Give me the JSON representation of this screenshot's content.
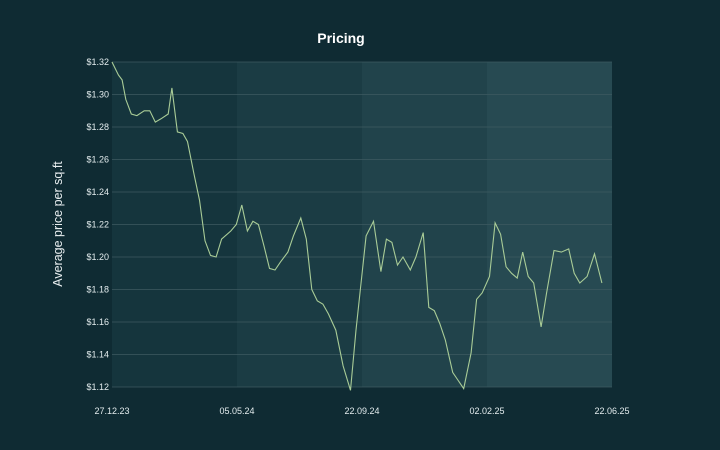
{
  "chart_data": {
    "type": "line",
    "title": "Pricing",
    "xlabel": "",
    "ylabel": "Average price per sq.ft",
    "x_tick_labels": [
      "27.12.23",
      "05.05.24",
      "22.09.24",
      "02.02.25",
      "22.06.25"
    ],
    "y_tick_labels": [
      "$1.12",
      "$1.14",
      "$1.16",
      "$1.18",
      "$1.20",
      "$1.22",
      "$1.24",
      "$1.26",
      "$1.28",
      "$1.30",
      "$1.32"
    ],
    "ylim": [
      1.12,
      1.32
    ],
    "x_range": [
      "2023-12-27",
      "2025-06-22"
    ],
    "grid": "horizontal",
    "legend": "none",
    "series": [
      {
        "values": [
          [
            "2023-12-27",
            1.32
          ],
          [
            "2024-01-03",
            1.312
          ],
          [
            "2024-01-07",
            1.309
          ],
          [
            "2024-01-11",
            1.297
          ],
          [
            "2024-01-17",
            1.288
          ],
          [
            "2024-01-23",
            1.287
          ],
          [
            "2024-01-31",
            1.29
          ],
          [
            "2024-02-06",
            1.29
          ],
          [
            "2024-02-12",
            1.283
          ],
          [
            "2024-02-18",
            1.285
          ],
          [
            "2024-02-26",
            1.288
          ],
          [
            "2024-03-01",
            1.304
          ],
          [
            "2024-03-07",
            1.277
          ],
          [
            "2024-03-13",
            1.276
          ],
          [
            "2024-03-18",
            1.271
          ],
          [
            "2024-03-25",
            1.251
          ],
          [
            "2024-03-31",
            1.235
          ],
          [
            "2024-04-06",
            1.21
          ],
          [
            "2024-04-12",
            1.201
          ],
          [
            "2024-04-18",
            1.2
          ],
          [
            "2024-04-24",
            1.211
          ],
          [
            "2024-05-04",
            1.216
          ],
          [
            "2024-05-10",
            1.22
          ],
          [
            "2024-05-16",
            1.232
          ],
          [
            "2024-05-22",
            1.216
          ],
          [
            "2024-05-28",
            1.222
          ],
          [
            "2024-06-03",
            1.22
          ],
          [
            "2024-06-09",
            1.207
          ],
          [
            "2024-06-15",
            1.193
          ],
          [
            "2024-06-21",
            1.192
          ],
          [
            "2024-06-27",
            1.197
          ],
          [
            "2024-07-05",
            1.203
          ],
          [
            "2024-07-11",
            1.213
          ],
          [
            "2024-07-19",
            1.224
          ],
          [
            "2024-07-25",
            1.211
          ],
          [
            "2024-07-31",
            1.18
          ],
          [
            "2024-08-06",
            1.173
          ],
          [
            "2024-08-12",
            1.171
          ],
          [
            "2024-08-18",
            1.165
          ],
          [
            "2024-08-26",
            1.155
          ],
          [
            "2024-09-03",
            1.133
          ],
          [
            "2024-09-11",
            1.118
          ],
          [
            "2024-09-17",
            1.155
          ],
          [
            "2024-09-28",
            1.213
          ],
          [
            "2024-10-06",
            1.222
          ],
          [
            "2024-10-14",
            1.191
          ],
          [
            "2024-10-20",
            1.211
          ],
          [
            "2024-10-26",
            1.209
          ],
          [
            "2024-11-01",
            1.195
          ],
          [
            "2024-11-07",
            1.2
          ],
          [
            "2024-11-15",
            1.192
          ],
          [
            "2024-11-21",
            1.2
          ],
          [
            "2024-11-29",
            1.215
          ],
          [
            "2024-12-05",
            1.169
          ],
          [
            "2024-12-11",
            1.167
          ],
          [
            "2024-12-17",
            1.159
          ],
          [
            "2024-12-23",
            1.149
          ],
          [
            "2024-12-31",
            1.129
          ],
          [
            "2025-01-06",
            1.124
          ],
          [
            "2025-01-12",
            1.119
          ],
          [
            "2025-01-20",
            1.141
          ],
          [
            "2025-01-26",
            1.174
          ],
          [
            "2025-02-01",
            1.178
          ],
          [
            "2025-02-09",
            1.188
          ],
          [
            "2025-02-15",
            1.221
          ],
          [
            "2025-02-21",
            1.214
          ],
          [
            "2025-02-27",
            1.194
          ],
          [
            "2025-03-05",
            1.19
          ],
          [
            "2025-03-11",
            1.187
          ],
          [
            "2025-03-17",
            1.203
          ],
          [
            "2025-03-23",
            1.188
          ],
          [
            "2025-03-29",
            1.184
          ],
          [
            "2025-04-06",
            1.157
          ],
          [
            "2025-04-12",
            1.178
          ],
          [
            "2025-04-20",
            1.204
          ],
          [
            "2025-04-28",
            1.203
          ],
          [
            "2025-05-06",
            1.205
          ],
          [
            "2025-05-12",
            1.19
          ],
          [
            "2025-05-18",
            1.184
          ],
          [
            "2025-05-26",
            1.188
          ],
          [
            "2025-06-03",
            1.202
          ],
          [
            "2025-06-11",
            1.184
          ]
        ]
      }
    ],
    "colors": {
      "background": "#0f2b33",
      "band_1": "#15353d",
      "band_2": "#1b3c44",
      "band_3": "#21434b",
      "band_4": "#274a52",
      "gridline": "#3e5a61",
      "line": "#a9cc97",
      "text": "#e3ecee"
    }
  }
}
